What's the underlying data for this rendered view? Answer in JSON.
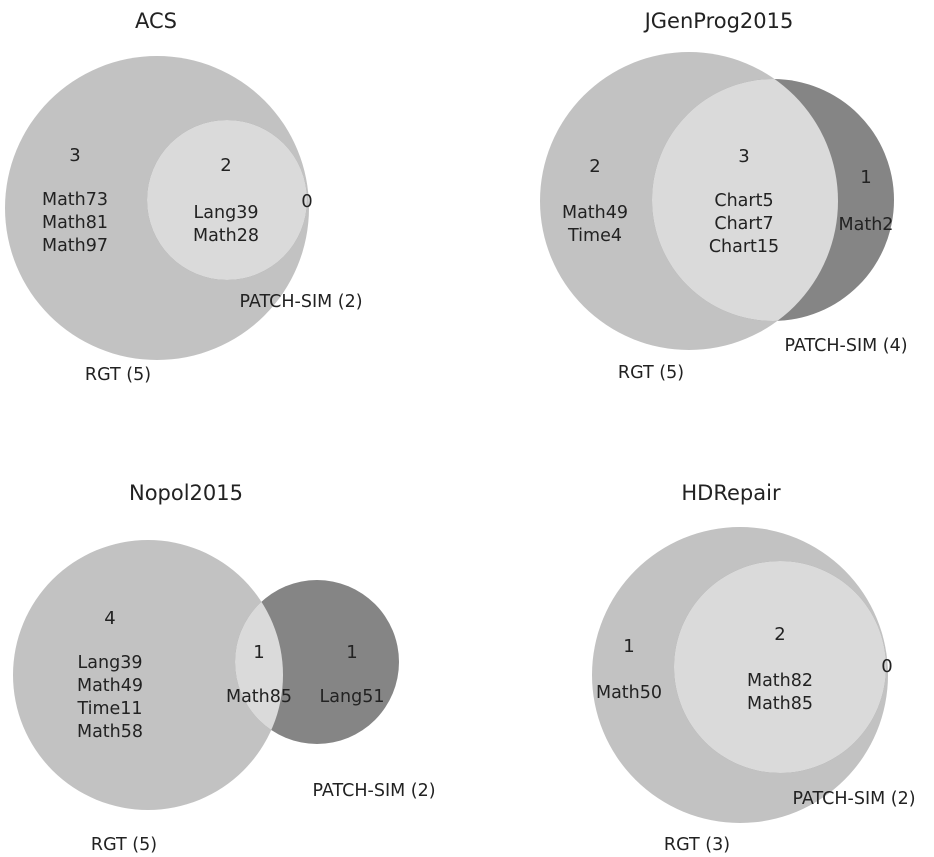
{
  "colors": {
    "rgt": "#c2c2c2",
    "overlap": "#dadada",
    "patchsim_only": "#858585",
    "text": "#222222"
  },
  "venns": [
    {
      "title": "ACS",
      "rgt_label": "RGT (5)",
      "patchsim_label": "PATCH-SIM (2)",
      "rgt_only": {
        "count": "3",
        "items": [
          "Math73",
          "Math81",
          "Math97"
        ]
      },
      "both": {
        "count": "2",
        "items": [
          "Lang39",
          "Math28"
        ]
      },
      "patchsim_only": {
        "count": "0",
        "items": []
      }
    },
    {
      "title": "JGenProg2015",
      "rgt_label": "RGT (5)",
      "patchsim_label": "PATCH-SIM (4)",
      "rgt_only": {
        "count": "2",
        "items": [
          "Math49",
          "Time4"
        ]
      },
      "both": {
        "count": "3",
        "items": [
          "Chart5",
          "Chart7",
          "Chart15"
        ]
      },
      "patchsim_only": {
        "count": "1",
        "items": [
          "Math2"
        ]
      }
    },
    {
      "title": "Nopol2015",
      "rgt_label": "RGT (5)",
      "patchsim_label": "PATCH-SIM (2)",
      "rgt_only": {
        "count": "4",
        "items": [
          "Lang39",
          "Math49",
          "Time11",
          "Math58"
        ]
      },
      "both": {
        "count": "1",
        "items": [
          "Math85"
        ]
      },
      "patchsim_only": {
        "count": "1",
        "items": [
          "Lang51"
        ]
      }
    },
    {
      "title": "HDRepair",
      "rgt_label": "RGT (3)",
      "patchsim_label": "PATCH-SIM (2)",
      "rgt_only": {
        "count": "1",
        "items": [
          "Math50"
        ]
      },
      "both": {
        "count": "2",
        "items": [
          "Math82",
          "Math85"
        ]
      },
      "patchsim_only": {
        "count": "0",
        "items": []
      }
    }
  ]
}
